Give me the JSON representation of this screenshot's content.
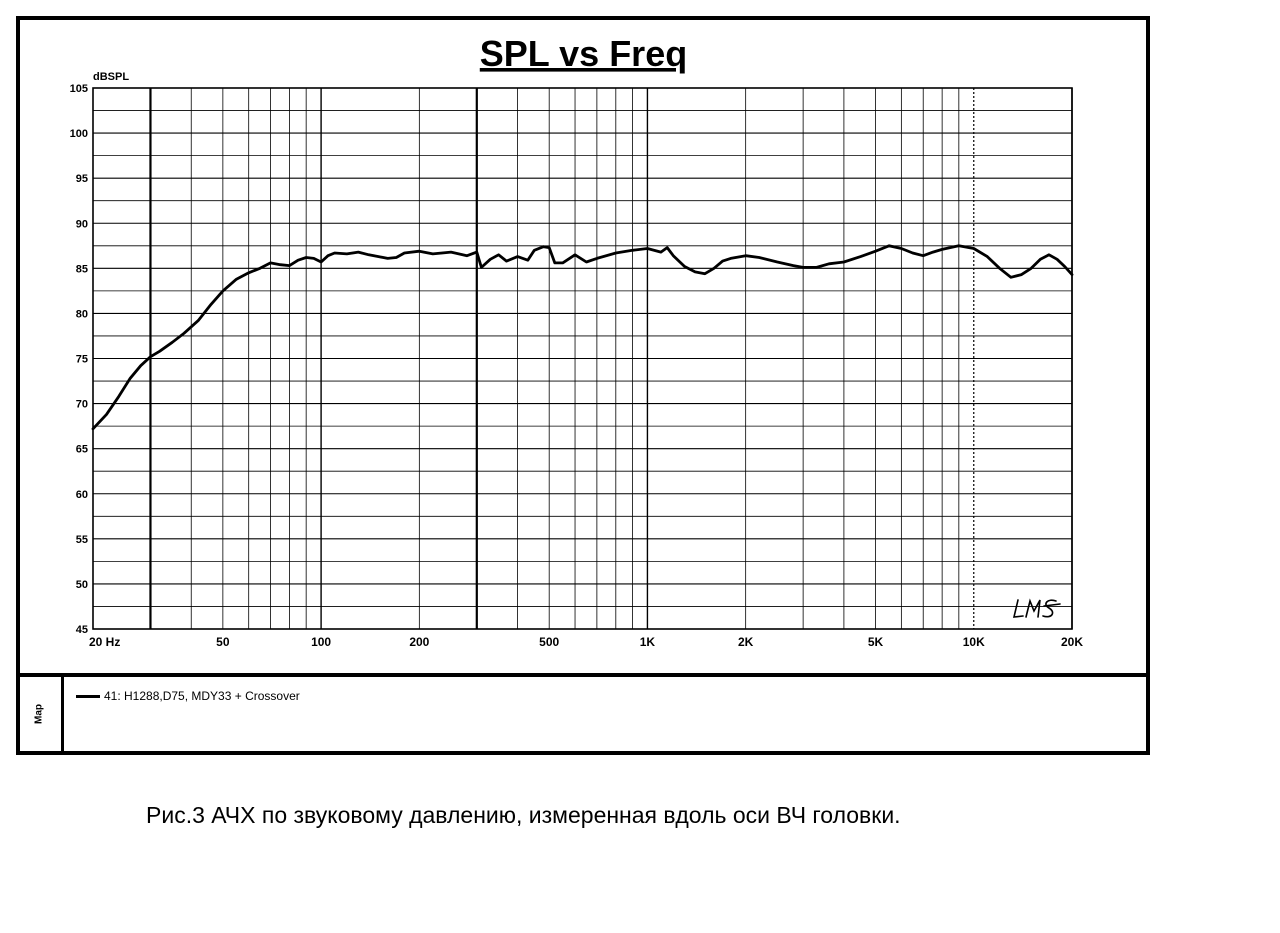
{
  "chart_data": {
    "type": "line",
    "title": "SPL vs Freq",
    "ylabel": "dBSPL",
    "xlabel": "",
    "xscale": "log",
    "xlim": [
      20,
      20000
    ],
    "ylim": [
      45,
      105
    ],
    "yticks": [
      45,
      50,
      55,
      60,
      65,
      70,
      75,
      80,
      85,
      90,
      95,
      100,
      105
    ],
    "xtick_labels": [
      {
        "value": 20,
        "label": "20  Hz"
      },
      {
        "value": 50,
        "label": "50"
      },
      {
        "value": 100,
        "label": "100"
      },
      {
        "value": 200,
        "label": "200"
      },
      {
        "value": 500,
        "label": "500"
      },
      {
        "value": 1000,
        "label": "1K"
      },
      {
        "value": 2000,
        "label": "2K"
      },
      {
        "value": 5000,
        "label": "5K"
      },
      {
        "value": 10000,
        "label": "10K"
      },
      {
        "value": 20000,
        "label": "20K"
      }
    ],
    "grid": true,
    "series": [
      {
        "name": "41: H1288,D75, MDY33 + Crossover",
        "color": "#000000",
        "x": [
          20,
          22,
          24,
          26,
          28,
          30,
          32,
          35,
          38,
          42,
          46,
          50,
          55,
          60,
          65,
          70,
          75,
          80,
          85,
          90,
          95,
          100,
          105,
          110,
          120,
          130,
          140,
          150,
          160,
          170,
          180,
          200,
          220,
          250,
          280,
          300,
          310,
          330,
          350,
          370,
          400,
          430,
          450,
          480,
          500,
          520,
          550,
          600,
          650,
          700,
          800,
          900,
          1000,
          1100,
          1150,
          1200,
          1300,
          1400,
          1500,
          1600,
          1700,
          1800,
          2000,
          2200,
          2500,
          2800,
          3000,
          3300,
          3600,
          4000,
          4500,
          5000,
          5500,
          6000,
          6500,
          7000,
          7500,
          8000,
          9000,
          10000,
          11000,
          12000,
          13000,
          14000,
          15000,
          16000,
          17000,
          18000,
          19000,
          20000
        ],
        "y": [
          67.2,
          68.8,
          70.8,
          72.8,
          74.2,
          75.2,
          75.8,
          76.8,
          77.8,
          79.2,
          81.0,
          82.5,
          83.8,
          84.5,
          85.0,
          85.6,
          85.4,
          85.3,
          85.9,
          86.2,
          86.1,
          85.7,
          86.4,
          86.7,
          86.6,
          86.8,
          86.5,
          86.3,
          86.1,
          86.2,
          86.7,
          86.9,
          86.6,
          86.8,
          86.4,
          86.8,
          85.1,
          86.0,
          86.5,
          85.8,
          86.3,
          85.9,
          87.0,
          87.4,
          87.3,
          85.6,
          85.6,
          86.5,
          85.7,
          86.1,
          86.7,
          87.0,
          87.2,
          86.8,
          87.3,
          86.4,
          85.2,
          84.6,
          84.4,
          85.0,
          85.8,
          86.1,
          86.4,
          86.2,
          85.7,
          85.3,
          85.1,
          85.1,
          85.5,
          85.7,
          86.3,
          86.9,
          87.5,
          87.2,
          86.7,
          86.4,
          86.8,
          87.1,
          87.5,
          87.2,
          86.3,
          85.0,
          84.0,
          84.3,
          85.0,
          86.0,
          86.5,
          86.0,
          85.2,
          84.3
        ]
      }
    ]
  },
  "legend": {
    "map_label": "Map",
    "entry": "41: H1288,D75, MDY33 + Crossover"
  },
  "caption": "Рис.3 АЧХ по звуковому давлению, измеренная вдоль оси ВЧ головки."
}
